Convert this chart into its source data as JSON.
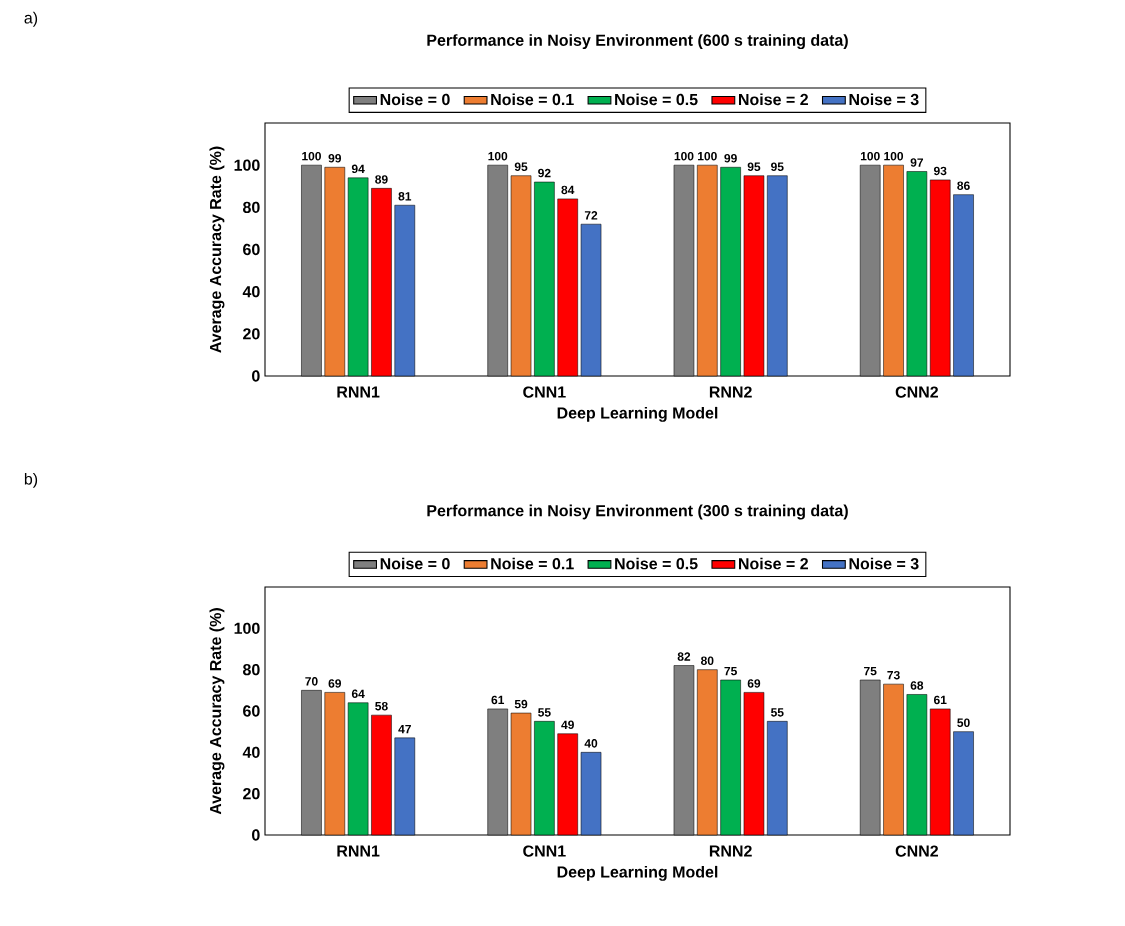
{
  "chart_data": [
    {
      "type": "bar",
      "title": "Performance in Noisy Environment (600 s training data)",
      "xlabel": "Deep Learning Model",
      "ylabel": "Average Accuracy Rate (%)",
      "annotations": [
        "a)"
      ],
      "categories": [
        "RNN1",
        "CNN1",
        "RNN2",
        "CNN2"
      ],
      "ylim": [
        0,
        120
      ],
      "yticks": [
        0,
        20,
        40,
        60,
        80,
        100
      ],
      "data_labels": true,
      "legend": "top",
      "series": [
        {
          "name": "Noise = 0",
          "color": "#7f7f7f",
          "values": [
            100,
            100,
            100,
            100
          ]
        },
        {
          "name": "Noise = 0.1",
          "color": "#ed7d31",
          "values": [
            99,
            95,
            100,
            100
          ]
        },
        {
          "name": "Noise = 0.5",
          "color": "#00b050",
          "values": [
            94,
            92,
            99,
            97
          ]
        },
        {
          "name": "Noise = 2",
          "color": "#ff0000",
          "values": [
            89,
            84,
            95,
            93
          ]
        },
        {
          "name": "Noise = 3",
          "color": "#4472c4",
          "values": [
            81,
            72,
            95,
            86
          ]
        }
      ]
    },
    {
      "type": "bar",
      "title": "Performance in Noisy Environment (300 s training data)",
      "xlabel": "Deep Learning Model",
      "ylabel": "Average Accuracy Rate (%)",
      "annotations": [
        "b)"
      ],
      "categories": [
        "RNN1",
        "CNN1",
        "RNN2",
        "CNN2"
      ],
      "ylim": [
        0,
        120
      ],
      "yticks": [
        0,
        20,
        40,
        60,
        80,
        100
      ],
      "data_labels": true,
      "legend": "top",
      "series": [
        {
          "name": "Noise = 0",
          "color": "#7f7f7f",
          "values": [
            70,
            61,
            82,
            75
          ]
        },
        {
          "name": "Noise = 0.1",
          "color": "#ed7d31",
          "values": [
            69,
            59,
            80,
            73
          ]
        },
        {
          "name": "Noise = 0.5",
          "color": "#00b050",
          "values": [
            64,
            55,
            75,
            68
          ]
        },
        {
          "name": "Noise = 2",
          "color": "#ff0000",
          "values": [
            58,
            49,
            69,
            61
          ]
        },
        {
          "name": "Noise = 3",
          "color": "#4472c4",
          "values": [
            47,
            40,
            55,
            50
          ]
        }
      ]
    }
  ]
}
